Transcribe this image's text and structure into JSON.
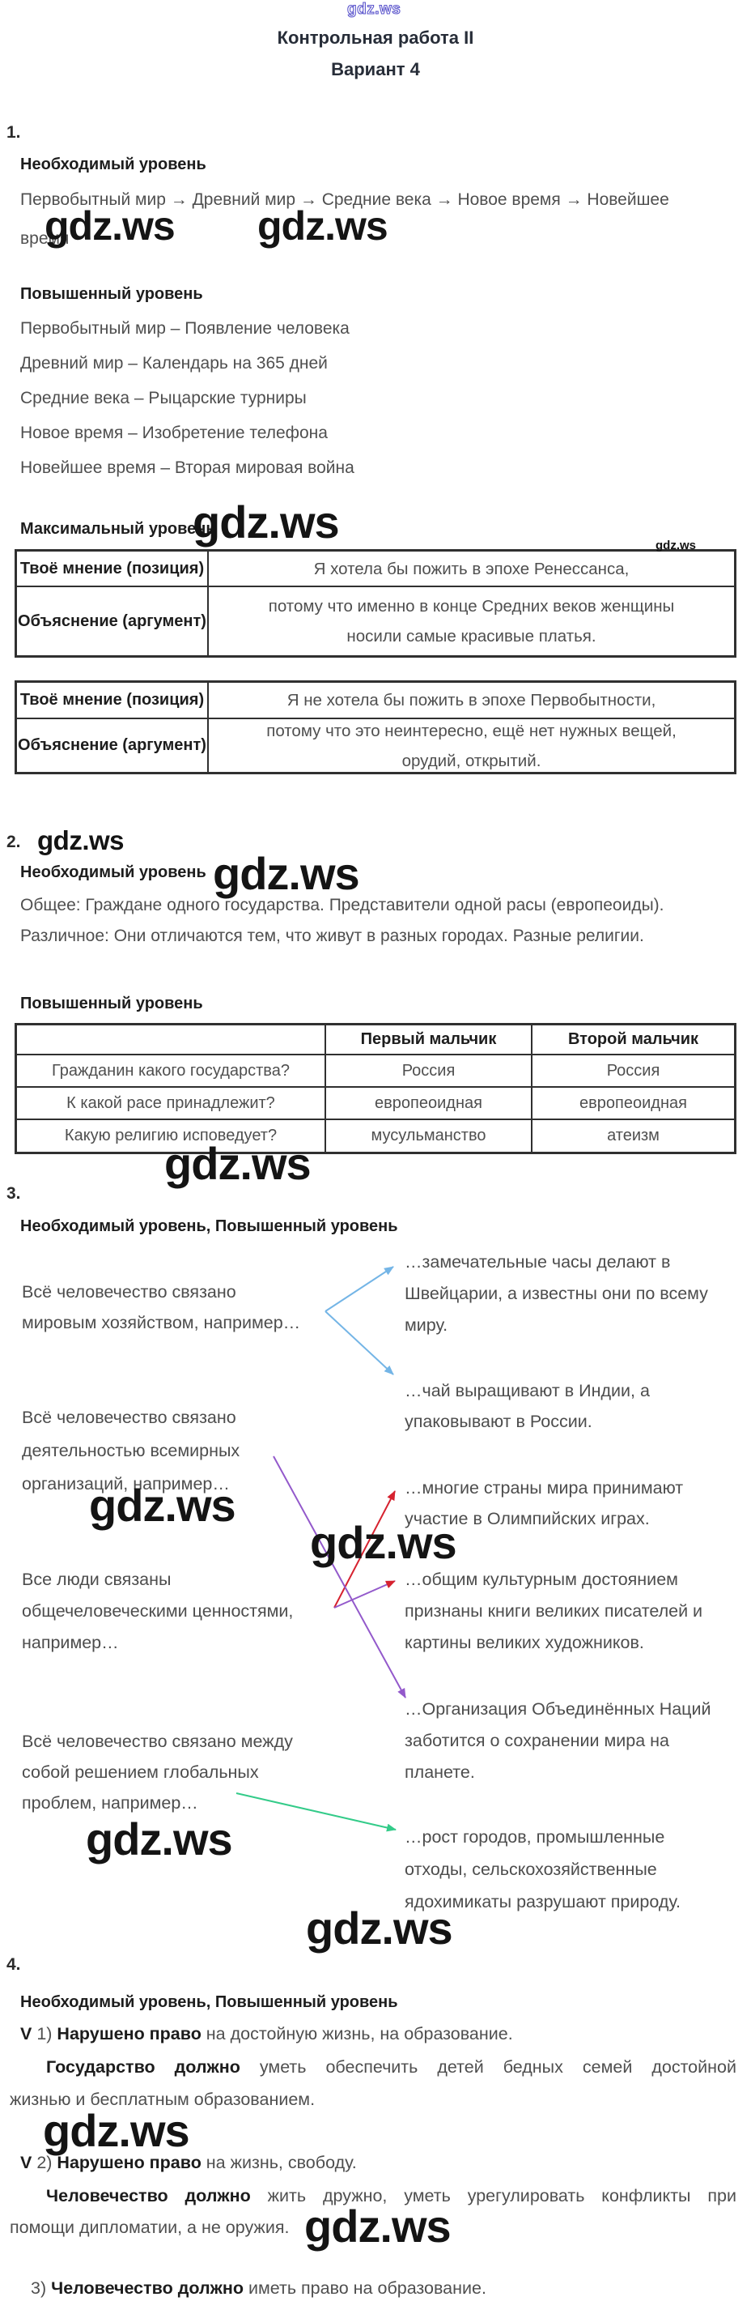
{
  "watermark": "gdz.ws",
  "header": {
    "logo": "gdz.ws",
    "title": "Контрольная работа II",
    "subtitle": "Вариант 4"
  },
  "colors": {
    "arrow_blue": "#74b5e6",
    "arrow_red": "#d6222f",
    "arrow_purple": "#9359cb",
    "arrow_green": "#33cb89",
    "logo_outline": "#5b55cc"
  },
  "s1": {
    "number": "1.",
    "h1": "Необходимый уровень",
    "timeline_lines": [
      "Первобытный мир → Древний мир → Средние века → Новое время → Новейшее",
      "время"
    ],
    "h2": "Повышенный уровень",
    "pairs": [
      "Первобытный мир – Появление человека",
      "Древний мир – Календарь на 365 дней",
      "Средние века – Рыцарские турниры",
      "Новое время – Изобретение телефона",
      "Новейшее время – Вторая мировая война"
    ],
    "h3": "Максимальный уровень",
    "table1": {
      "row1_label": "Твоё мнение (позиция)",
      "row1_value_lines": [
        "Я хотела бы пожить в эпохе Ренессанса,"
      ],
      "row2_label": "Объяснение (аргумент)",
      "row2_value_lines": [
        "потому что именно в конце Средних веков женщины",
        "носили самые красивые платья."
      ]
    },
    "table2": {
      "row1_label": "Твоё мнение (позиция)",
      "row1_value_lines": [
        "Я не хотела бы пожить в эпохе Первобытности,"
      ],
      "row2_label": "Объяснение (аргумент)",
      "row2_value_lines": [
        "потому что это неинтересно, ещё нет нужных вещей,",
        "орудий, открытий."
      ]
    }
  },
  "s2": {
    "number": "2.",
    "h1": "Необходимый уровень",
    "p1": "Общее: Граждане одного государства. Представители одной расы (европеоиды).",
    "p2": "Различное: Они отличаются тем, что живут в разных городах. Разные религии.",
    "h2": "Повышенный уровень",
    "table3": {
      "col_headers": [
        "",
        "Первый мальчик",
        "Второй мальчик"
      ],
      "rows": [
        [
          "Гражданин какого государства?",
          "Россия",
          "Россия"
        ],
        [
          "К какой расе принадлежит?",
          "европеоидная",
          "европеоидная"
        ],
        [
          "Какую религию исповедует?",
          "мусульманство",
          "атеизм"
        ]
      ]
    }
  },
  "s3": {
    "number": "3.",
    "h1": "Необходимый уровень, Повышенный уровень",
    "left": [
      {
        "lines": [
          "Всё человечество связано",
          "мировым хозяйством, например…"
        ]
      },
      {
        "lines": [
          "Всё человечество связано",
          "деятельностью всемирных",
          "организаций, например…"
        ]
      },
      {
        "lines": [
          "Все люди связаны",
          "общечеловеческими ценностями,",
          "например…"
        ]
      },
      {
        "lines": [
          "Всё человечество связано между",
          "собой решением глобальных",
          "проблем, например…"
        ]
      }
    ],
    "right": [
      {
        "lines": [
          "…замечательные часы делают в",
          "Швейцарии, а известны они по всему",
          "миру."
        ]
      },
      {
        "lines": [
          "…чай выращивают в Индии, а",
          "упаковывают в России."
        ]
      },
      {
        "lines": [
          "…многие страны мира принимают",
          "участие в Олимпийских играх."
        ]
      },
      {
        "lines": [
          "…общим культурным достоянием",
          "признаны книги великих писателей и",
          "картины великих художников."
        ]
      },
      {
        "lines": [
          "…Организация Объединённых Наций",
          "заботится о сохранении мира на",
          "планете."
        ]
      },
      {
        "lines": [
          "…рост городов, промышленные",
          "отходы, сельскохозяйственные",
          "ядохимикаты разрушают природу."
        ]
      }
    ]
  },
  "s4": {
    "number": "4.",
    "h1": "Необходимый уровень, Повышенный уровень",
    "p1": [
      [
        {
          "t": "V",
          "b": true
        },
        {
          "t": " 1) "
        },
        {
          "t": "Нарушено право",
          "b": true
        },
        {
          "t": " на достойную жизнь, на образование."
        }
      ]
    ],
    "p2": [
      [
        {
          "t": "Государство должно",
          "b": true
        },
        {
          "t": " уметь обеспечить детей бедных семей достойной"
        }
      ],
      [
        {
          "t": "жизнью и бесплатным образованием."
        }
      ]
    ],
    "p3": [
      [
        {
          "t": "V",
          "b": true
        },
        {
          "t": " 2) "
        },
        {
          "t": "Нарушено право",
          "b": true
        },
        {
          "t": " на жизнь, свободу."
        }
      ]
    ],
    "p4": [
      [
        {
          "t": "Человечество должно",
          "b": true
        },
        {
          "t": " жить дружно, уметь урегулировать конфликты при"
        }
      ],
      [
        {
          "t": "помощи дипломатии, а не оружия."
        }
      ]
    ],
    "p5": [
      [
        {
          "t": "3) "
        },
        {
          "t": "Человечество должно",
          "b": true
        },
        {
          "t": " иметь право на образование."
        }
      ]
    ]
  }
}
